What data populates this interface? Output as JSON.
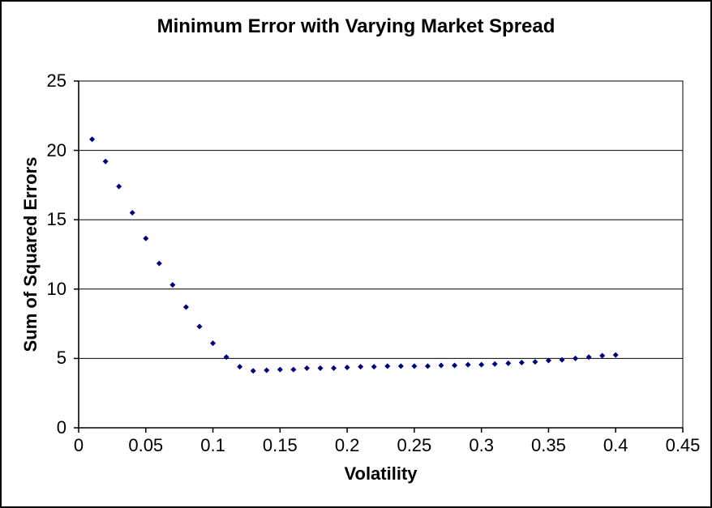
{
  "figure": {
    "background": "#ffffff",
    "border_color": "#000000"
  },
  "chart_data": {
    "type": "scatter",
    "title": "Minimum Error with Varying Market Spread",
    "xlabel": "Volatility",
    "ylabel": "Sum of Squared Errors",
    "xlim": [
      0,
      0.45
    ],
    "ylim": [
      0,
      25
    ],
    "x_tick_labels": [
      "0",
      "0.05",
      "0.1",
      "0.15",
      "0.2",
      "0.25",
      "0.3",
      "0.35",
      "0.4",
      "0.45"
    ],
    "y_tick_labels": [
      "0",
      "5",
      "10",
      "15",
      "20",
      "25"
    ],
    "grid": "horizontal",
    "legend": "none",
    "marker": {
      "shape": "diamond",
      "color": "#000080",
      "size": 7
    },
    "x": [
      0.01,
      0.02,
      0.03,
      0.04,
      0.05,
      0.06,
      0.07,
      0.08,
      0.09,
      0.1,
      0.11,
      0.12,
      0.13,
      0.14,
      0.15,
      0.16,
      0.17,
      0.18,
      0.19,
      0.2,
      0.21,
      0.22,
      0.23,
      0.24,
      0.25,
      0.26,
      0.27,
      0.28,
      0.29,
      0.3,
      0.31,
      0.32,
      0.33,
      0.34,
      0.35,
      0.36,
      0.37,
      0.38,
      0.39,
      0.4
    ],
    "y": [
      20.8,
      19.2,
      17.4,
      15.5,
      13.65,
      11.85,
      10.3,
      8.7,
      7.3,
      6.1,
      5.1,
      4.4,
      4.1,
      4.15,
      4.2,
      4.2,
      4.3,
      4.3,
      4.3,
      4.35,
      4.4,
      4.4,
      4.45,
      4.45,
      4.45,
      4.45,
      4.5,
      4.5,
      4.55,
      4.55,
      4.6,
      4.65,
      4.7,
      4.75,
      4.85,
      4.9,
      5.0,
      5.1,
      5.2,
      5.25
    ]
  }
}
